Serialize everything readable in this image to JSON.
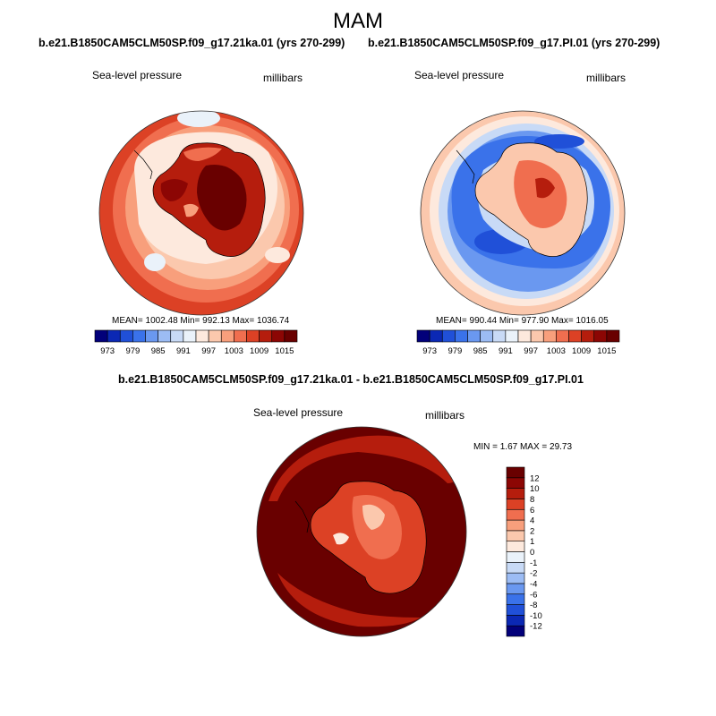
{
  "page": {
    "title": "MAM"
  },
  "panels": [
    {
      "title": "b.e21.B1850CAM5CLM50SP.f09_g17.21ka.01 (yrs 270-299)",
      "variable": "Sea-level pressure",
      "units": "millibars",
      "stats_text": "MEAN= 1002.48  Min= 992.13  Max= 1036.74"
    },
    {
      "title": "b.e21.B1850CAM5CLM50SP.f09_g17.PI.01 (yrs 270-299)",
      "variable": "Sea-level pressure",
      "units": "millibars",
      "stats_text": "MEAN= 990.44  Min= 977.90  Max= 1016.05"
    },
    {
      "title": "b.e21.B1850CAM5CLM50SP.f09_g17.21ka.01 - b.e21.B1850CAM5CLM50SP.f09_g17.PI.01",
      "variable": "Sea-level pressure",
      "units": "millibars",
      "stats_text": "MIN =   1.67 MAX =  29.73"
    }
  ],
  "chart_data": [
    {
      "type": "heatmap",
      "projection": "south-polar-stereographic",
      "title": "b.e21.B1850CAM5CLM50SP.f09_g17.21ka.01 (yrs 270-299)",
      "variable": "Sea-level pressure",
      "units": "millibars",
      "stats": {
        "mean": 1002.48,
        "min": 992.13,
        "max": 1036.74
      },
      "colorbar": {
        "orientation": "horizontal",
        "levels": [
          973,
          976,
          979,
          982,
          985,
          988,
          991,
          994,
          997,
          1000,
          1003,
          1006,
          1009,
          1012,
          1015
        ],
        "tick_labels": [
          "973",
          "979",
          "985",
          "991",
          "997",
          "1003",
          "1009",
          "1015"
        ],
        "colors": [
          "#02007a",
          "#0b28b4",
          "#2050d8",
          "#3a72ea",
          "#6a98f0",
          "#9cbcf4",
          "#c8daf6",
          "#eaf2fa",
          "#fde9dd",
          "#fbc8ad",
          "#f89f7c",
          "#f06e4f",
          "#dc4125",
          "#b51d0d",
          "#8c0604",
          "#690000"
        ]
      }
    },
    {
      "type": "heatmap",
      "projection": "south-polar-stereographic",
      "title": "b.e21.B1850CAM5CLM50SP.f09_g17.PI.01 (yrs 270-299)",
      "variable": "Sea-level pressure",
      "units": "millibars",
      "stats": {
        "mean": 990.44,
        "min": 977.9,
        "max": 1016.05
      },
      "colorbar": {
        "orientation": "horizontal",
        "levels": [
          973,
          976,
          979,
          982,
          985,
          988,
          991,
          994,
          997,
          1000,
          1003,
          1006,
          1009,
          1012,
          1015
        ],
        "tick_labels": [
          "973",
          "979",
          "985",
          "991",
          "997",
          "1003",
          "1009",
          "1015"
        ],
        "colors": [
          "#02007a",
          "#0b28b4",
          "#2050d8",
          "#3a72ea",
          "#6a98f0",
          "#9cbcf4",
          "#c8daf6",
          "#eaf2fa",
          "#fde9dd",
          "#fbc8ad",
          "#f89f7c",
          "#f06e4f",
          "#dc4125",
          "#b51d0d",
          "#8c0604",
          "#690000"
        ]
      }
    },
    {
      "type": "heatmap",
      "projection": "south-polar-stereographic",
      "title": "b.e21.B1850CAM5CLM50SP.f09_g17.21ka.01 - b.e21.B1850CAM5CLM50SP.f09_g17.PI.01",
      "variable": "Sea-level pressure",
      "units": "millibars",
      "stats": {
        "min": 1.67,
        "max": 29.73
      },
      "colorbar": {
        "orientation": "vertical",
        "levels": [
          -12,
          -10,
          -8,
          -6,
          -4,
          -2,
          -1,
          0,
          1,
          2,
          4,
          6,
          8,
          10,
          12
        ],
        "tick_labels": [
          "-12",
          "-10",
          "-8",
          "-6",
          "-4",
          "-2",
          "-1",
          "0",
          "1",
          "2",
          "4",
          "6",
          "8",
          "10",
          "12"
        ],
        "colors": [
          "#02007a",
          "#0b28b4",
          "#2050d8",
          "#3a72ea",
          "#6a98f0",
          "#9cbcf4",
          "#c8daf6",
          "#eaf2fa",
          "#fde9dd",
          "#fbc8ad",
          "#f89f7c",
          "#f06e4f",
          "#dc4125",
          "#b51d0d",
          "#8c0604",
          "#690000"
        ]
      }
    }
  ]
}
